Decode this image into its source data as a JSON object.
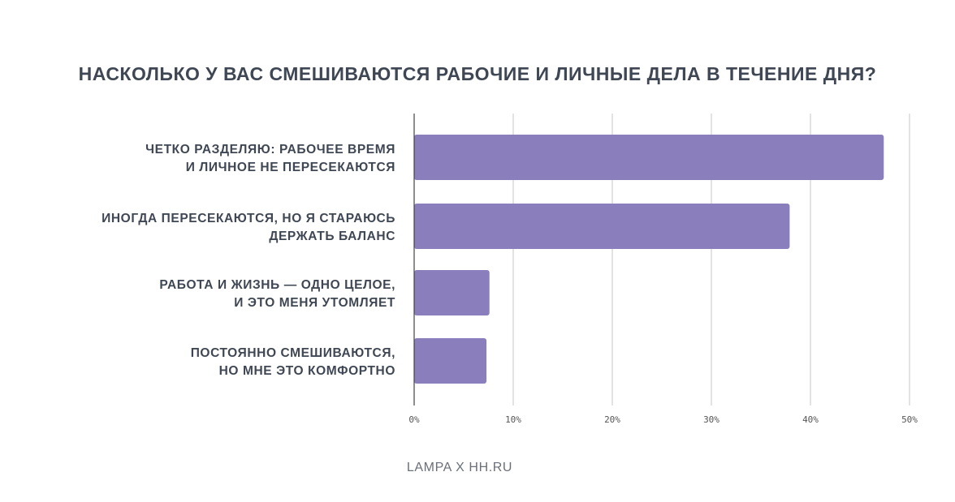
{
  "chart_data": {
    "type": "bar",
    "orientation": "horizontal",
    "title": "НАСКОЛЬКО У ВАС СМЕШИВАЮТСЯ РАБОЧИЕ И ЛИЧНЫЕ ДЕЛА В ТЕЧЕНИЕ ДНЯ?",
    "categories": [
      [
        "ЧЕТКО РАЗДЕЛЯЮ: РАБОЧЕЕ ВРЕМЯ",
        "И ЛИЧНОЕ НЕ ПЕРЕСЕКАЮТСЯ"
      ],
      [
        "ИНОГДА ПЕРЕСЕКАЮТСЯ, НО Я СТАРАЮСЬ",
        "ДЕРЖАТЬ БАЛАНС"
      ],
      [
        "РАБОТА И ЖИЗНЬ — ОДНО ЦЕЛОЕ,",
        "И ЭТО МЕНЯ УТОМЛЯЕТ"
      ],
      [
        "ПОСТОЯННО СМЕШИВАЮТСЯ,",
        "НО МНЕ ЭТО КОМФОРТНО"
      ]
    ],
    "values": [
      47.4,
      37.9,
      7.6,
      7.3
    ],
    "unit": "%",
    "xlim": [
      0,
      50
    ],
    "xticks": [
      "0%",
      "10%",
      "20%",
      "30%",
      "40%",
      "50%"
    ],
    "grid": true,
    "bar_color": "#8b7ebd"
  },
  "footer": "LAMPA X HH.RU"
}
